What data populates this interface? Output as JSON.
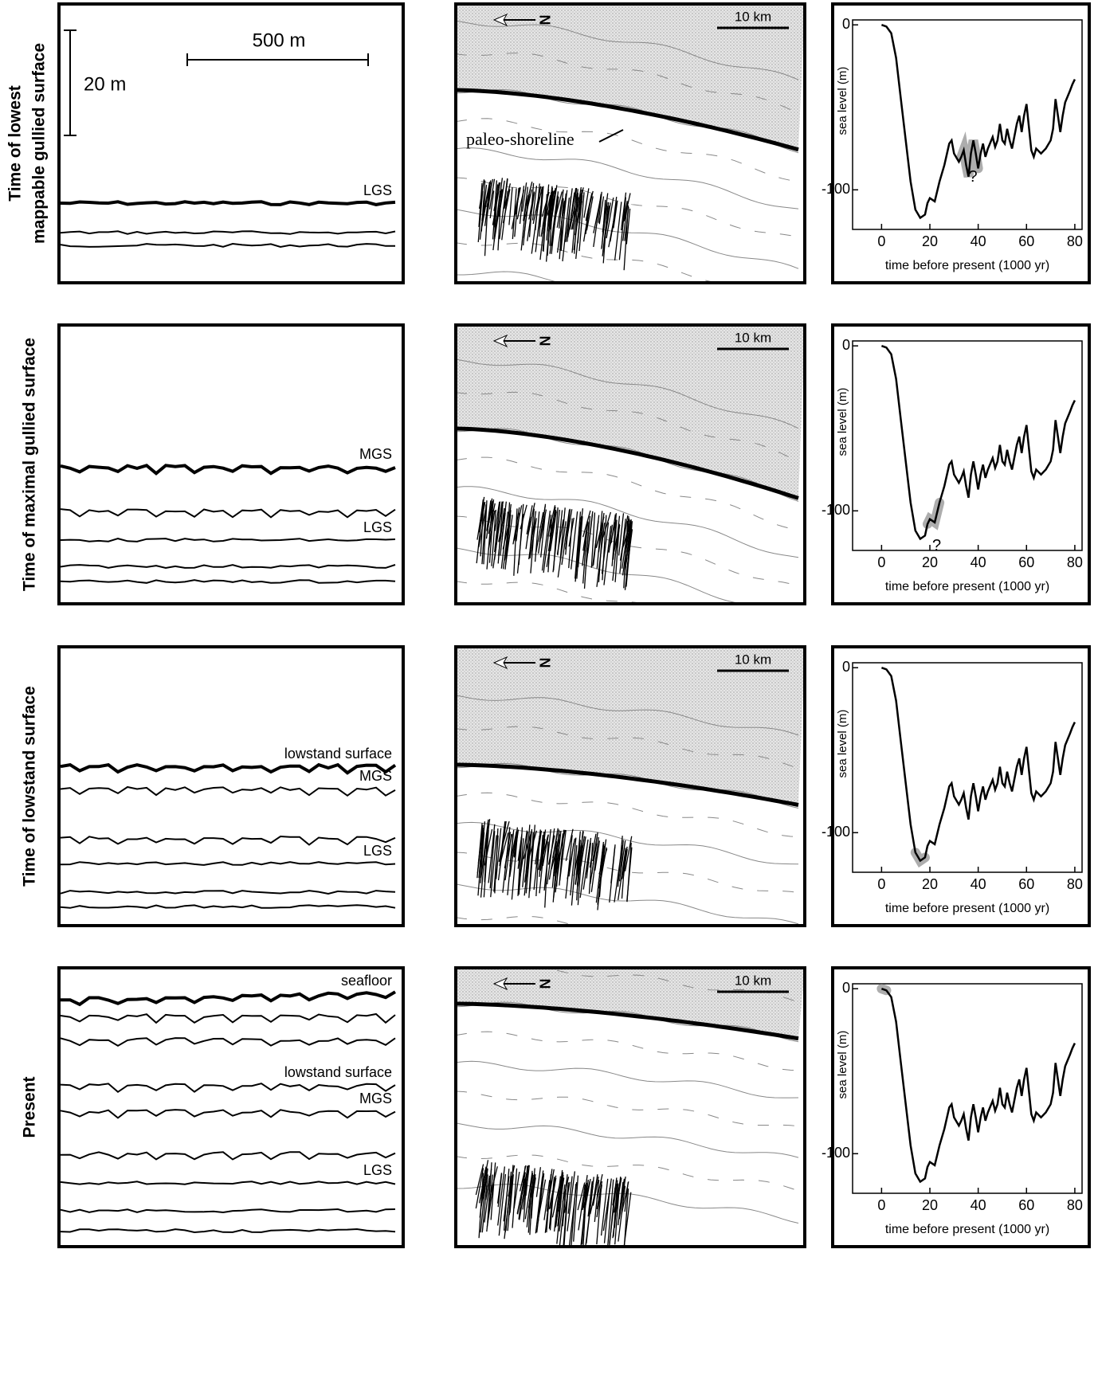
{
  "scale_bars": {
    "vertical": "20 m",
    "horizontal": "500 m"
  },
  "map": {
    "north": "N",
    "shoreline_label": "paleo-shoreline"
  },
  "rows": [
    {
      "label": [
        "Time of lowest",
        "mappable gullied surface"
      ],
      "surfaces": [
        "LGS"
      ],
      "map_scale": "10 km"
    },
    {
      "label": [
        "Time of maximal gullied surface"
      ],
      "surfaces": [
        "MGS",
        "LGS"
      ],
      "map_scale": "10 km"
    },
    {
      "label": [
        "Time of lowstand surface"
      ],
      "surfaces": [
        "lowstand surface",
        "MGS",
        "LGS"
      ],
      "map_scale": "10 km"
    },
    {
      "label": [
        "Present"
      ],
      "surfaces": [
        "seafloor",
        "lowstand surface",
        "MGS",
        "LGS"
      ],
      "map_scale": "10 km"
    }
  ],
  "chart_data": [
    {
      "type": "line",
      "xlabel": "time before present (1000 yr)",
      "ylabel": "sea level (m)",
      "xlim": [
        -12,
        83
      ],
      "ylim": [
        -124,
        3
      ],
      "xticks": [
        0,
        20,
        40,
        60,
        80
      ],
      "yticks": [
        0,
        -100
      ],
      "color": "#000000",
      "x": [
        0,
        2,
        4,
        6,
        8,
        10,
        12,
        14,
        16,
        18,
        19,
        20,
        22,
        24,
        26,
        28,
        29,
        30,
        32,
        33,
        34,
        35,
        36,
        37,
        38,
        39,
        40,
        41,
        42,
        43,
        44,
        46,
        47,
        48,
        49,
        50,
        51,
        52,
        53,
        54,
        56,
        57,
        58,
        59,
        60,
        61,
        62,
        63,
        64,
        66,
        68,
        70,
        71,
        72,
        73,
        74,
        75,
        76,
        78,
        79,
        80
      ],
      "values": [
        0,
        -1,
        -5,
        -20,
        -45,
        -70,
        -95,
        -112,
        -117,
        -115,
        -108,
        -105,
        -107,
        -95,
        -85,
        -72,
        -70,
        -78,
        -83,
        -80,
        -76,
        -85,
        -92,
        -78,
        -70,
        -78,
        -87,
        -78,
        -72,
        -80,
        -75,
        -68,
        -74,
        -70,
        -60,
        -70,
        -72,
        -63,
        -70,
        -75,
        -60,
        -55,
        -65,
        -55,
        -48,
        -62,
        -76,
        -80,
        -75,
        -78,
        -75,
        -70,
        -63,
        -45,
        -55,
        -65,
        -55,
        -47,
        -40,
        -36,
        -33
      ],
      "shaded_range": [
        33,
        40
      ],
      "annotation": "?"
    },
    {
      "type": "line",
      "xlabel": "time before present (1000 yr)",
      "ylabel": "sea level (m)",
      "xlim": [
        -12,
        83
      ],
      "ylim": [
        -124,
        3
      ],
      "xticks": [
        0,
        20,
        40,
        60,
        80
      ],
      "yticks": [
        0,
        -100
      ],
      "color": "#000000",
      "x": [
        0,
        2,
        4,
        6,
        8,
        10,
        12,
        14,
        16,
        18,
        19,
        20,
        22,
        24,
        26,
        28,
        29,
        30,
        32,
        33,
        34,
        35,
        36,
        37,
        38,
        39,
        40,
        41,
        42,
        43,
        44,
        46,
        47,
        48,
        49,
        50,
        51,
        52,
        53,
        54,
        56,
        57,
        58,
        59,
        60,
        61,
        62,
        63,
        64,
        66,
        68,
        70,
        71,
        72,
        73,
        74,
        75,
        76,
        78,
        79,
        80
      ],
      "values": [
        0,
        -1,
        -5,
        -20,
        -45,
        -70,
        -95,
        -112,
        -117,
        -115,
        -108,
        -105,
        -107,
        -95,
        -85,
        -72,
        -70,
        -78,
        -83,
        -80,
        -76,
        -85,
        -92,
        -78,
        -70,
        -78,
        -87,
        -78,
        -72,
        -80,
        -75,
        -68,
        -74,
        -70,
        -60,
        -70,
        -72,
        -63,
        -70,
        -75,
        -60,
        -55,
        -65,
        -55,
        -48,
        -62,
        -76,
        -80,
        -75,
        -78,
        -75,
        -70,
        -63,
        -45,
        -55,
        -65,
        -55,
        -47,
        -40,
        -36,
        -33
      ],
      "shaded_range": [
        19,
        24
      ],
      "annotation": "?"
    },
    {
      "type": "line",
      "xlabel": "time before present (1000 yr)",
      "ylabel": "sea level (m)",
      "xlim": [
        -12,
        83
      ],
      "ylim": [
        -124,
        3
      ],
      "xticks": [
        0,
        20,
        40,
        60,
        80
      ],
      "yticks": [
        0,
        -100
      ],
      "color": "#000000",
      "x": [
        0,
        2,
        4,
        6,
        8,
        10,
        12,
        14,
        16,
        18,
        19,
        20,
        22,
        24,
        26,
        28,
        29,
        30,
        32,
        33,
        34,
        35,
        36,
        37,
        38,
        39,
        40,
        41,
        42,
        43,
        44,
        46,
        47,
        48,
        49,
        50,
        51,
        52,
        53,
        54,
        56,
        57,
        58,
        59,
        60,
        61,
        62,
        63,
        64,
        66,
        68,
        70,
        71,
        72,
        73,
        74,
        75,
        76,
        78,
        79,
        80
      ],
      "values": [
        0,
        -1,
        -5,
        -20,
        -45,
        -70,
        -95,
        -112,
        -117,
        -115,
        -108,
        -105,
        -107,
        -95,
        -85,
        -72,
        -70,
        -78,
        -83,
        -80,
        -76,
        -85,
        -92,
        -78,
        -70,
        -78,
        -87,
        -78,
        -72,
        -80,
        -75,
        -68,
        -74,
        -70,
        -60,
        -70,
        -72,
        -63,
        -70,
        -75,
        -60,
        -55,
        -65,
        -55,
        -48,
        -62,
        -76,
        -80,
        -75,
        -78,
        -75,
        -70,
        -63,
        -45,
        -55,
        -65,
        -55,
        -47,
        -40,
        -36,
        -33
      ],
      "shaded_range": [
        14,
        18
      ]
    },
    {
      "type": "line",
      "xlabel": "time before present (1000 yr)",
      "ylabel": "sea level (m)",
      "xlim": [
        -12,
        83
      ],
      "ylim": [
        -124,
        3
      ],
      "xticks": [
        0,
        20,
        40,
        60,
        80
      ],
      "yticks": [
        0,
        -100
      ],
      "color": "#000000",
      "x": [
        0,
        2,
        4,
        6,
        8,
        10,
        12,
        14,
        16,
        18,
        19,
        20,
        22,
        24,
        26,
        28,
        29,
        30,
        32,
        33,
        34,
        35,
        36,
        37,
        38,
        39,
        40,
        41,
        42,
        43,
        44,
        46,
        47,
        48,
        49,
        50,
        51,
        52,
        53,
        54,
        56,
        57,
        58,
        59,
        60,
        61,
        62,
        63,
        64,
        66,
        68,
        70,
        71,
        72,
        73,
        74,
        75,
        76,
        78,
        79,
        80
      ],
      "values": [
        0,
        -1,
        -5,
        -20,
        -45,
        -70,
        -95,
        -112,
        -117,
        -115,
        -108,
        -105,
        -107,
        -95,
        -85,
        -72,
        -70,
        -78,
        -83,
        -80,
        -76,
        -85,
        -92,
        -78,
        -70,
        -78,
        -87,
        -78,
        -72,
        -80,
        -75,
        -68,
        -74,
        -70,
        -60,
        -70,
        -72,
        -63,
        -70,
        -75,
        -60,
        -55,
        -65,
        -55,
        -48,
        -62,
        -76,
        -80,
        -75,
        -78,
        -75,
        -70,
        -63,
        -45,
        -55,
        -65,
        -55,
        -47,
        -40,
        -36,
        -33
      ],
      "shaded_range": [
        0,
        3
      ]
    }
  ]
}
